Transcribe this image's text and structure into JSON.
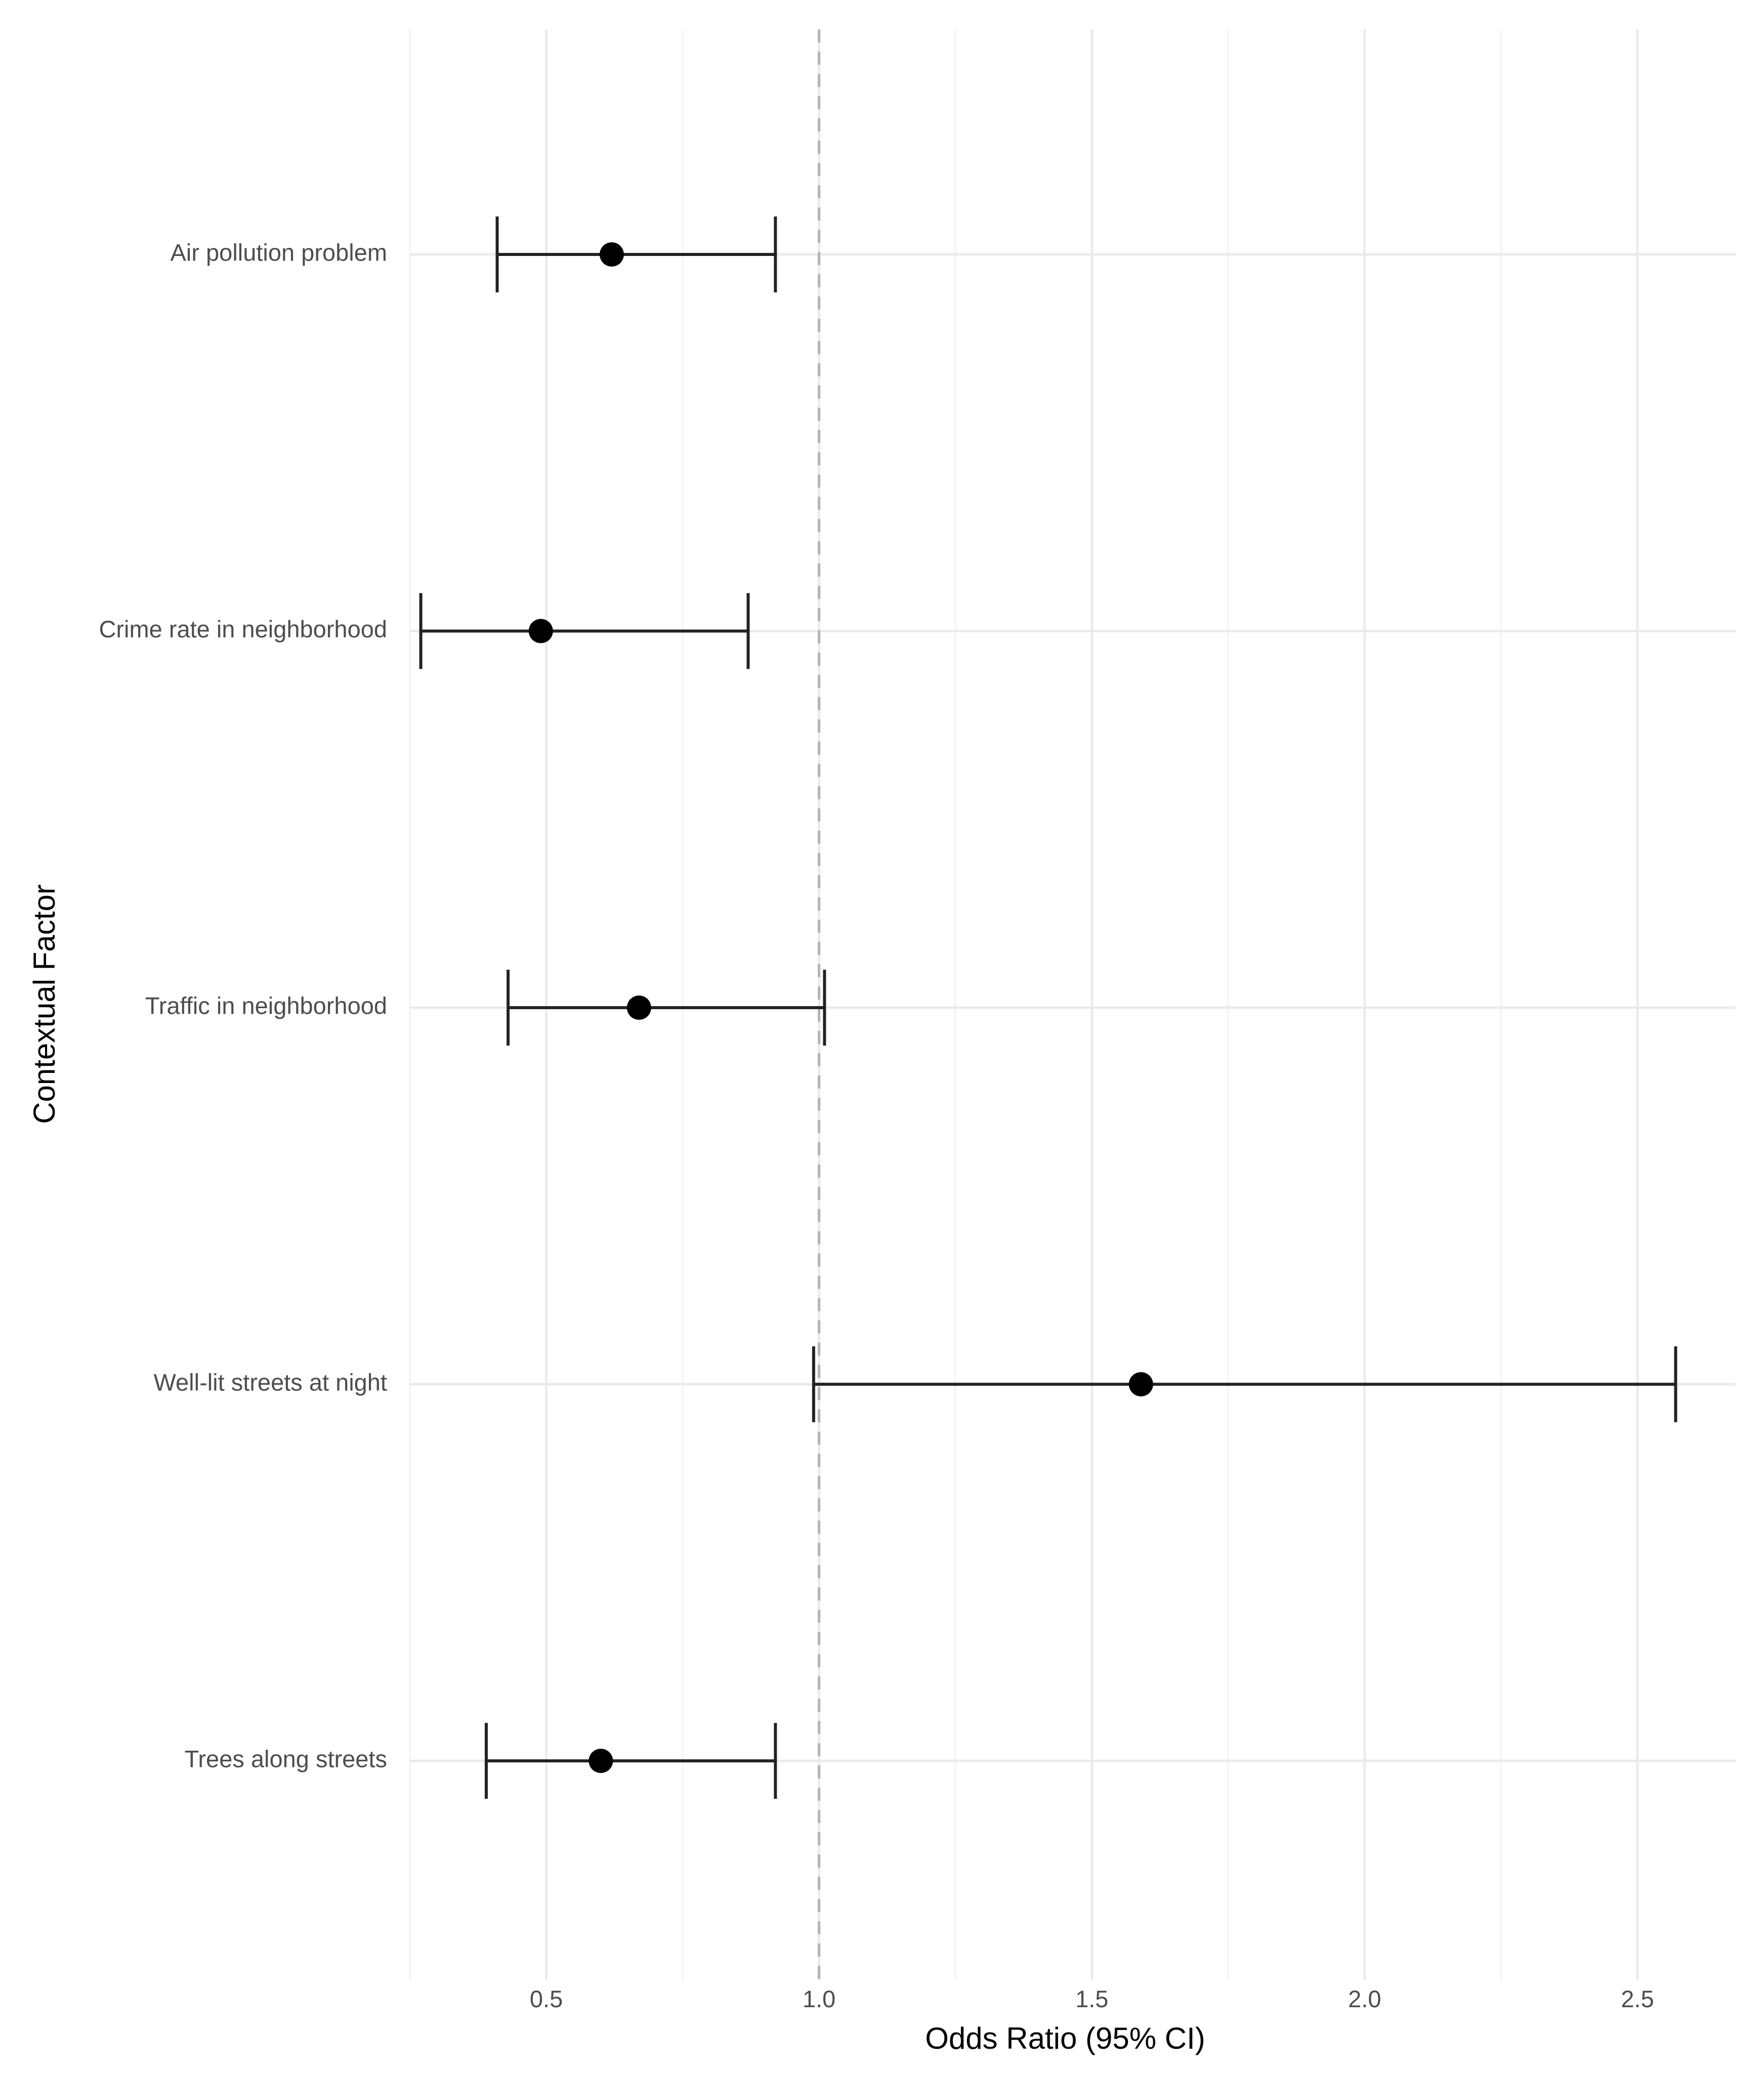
{
  "chart_data": {
    "type": "forest",
    "xlabel": "Odds Ratio (95% CI)",
    "ylabel": "Contextual Factor",
    "xlim": [
      0.25,
      2.68
    ],
    "x_major_ticks": [
      0.5,
      1.0,
      1.5,
      2.0,
      2.5
    ],
    "x_tick_labels": [
      "0.5",
      "1.0",
      "1.5",
      "2.0",
      "2.5"
    ],
    "x_minor_ticks": [
      0.25,
      0.75,
      1.25,
      1.75,
      2.25
    ],
    "reference_line": 1.0,
    "grid": true,
    "categories": [
      "Air pollution problem",
      "Crime rate in neighborhood",
      "Traffic in neighborhood",
      "Well-lit streets at night",
      "Trees along streets"
    ],
    "series": [
      {
        "estimate": [
          0.62,
          0.49,
          0.67,
          1.59,
          0.6
        ],
        "lower": [
          0.41,
          0.27,
          0.43,
          0.99,
          0.39
        ],
        "upper": [
          0.92,
          0.87,
          1.01,
          2.57,
          0.92
        ]
      }
    ]
  }
}
